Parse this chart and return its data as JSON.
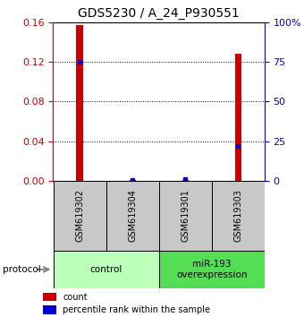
{
  "title": "GDS5230 / A_24_P930551",
  "categories": [
    "GSM619302",
    "GSM619304",
    "GSM619301",
    "GSM619303"
  ],
  "red_bars": [
    0.157,
    0.0005,
    0.0005,
    0.128
  ],
  "blue_dots_pct": [
    75.0,
    0.3,
    1.0,
    22.0
  ],
  "left_ylim": [
    0,
    0.16
  ],
  "right_ylim": [
    0,
    100
  ],
  "left_yticks": [
    0,
    0.04,
    0.08,
    0.12,
    0.16
  ],
  "right_yticks": [
    0,
    25,
    50,
    75,
    100
  ],
  "right_yticklabels": [
    "0",
    "25",
    "50",
    "75",
    "100%"
  ],
  "groups": [
    {
      "label": "control",
      "indices": [
        0,
        1
      ],
      "color": "#bbffbb"
    },
    {
      "label": "miR-193\noverexpression",
      "indices": [
        2,
        3
      ],
      "color": "#55dd55"
    }
  ],
  "protocol_label": "protocol",
  "red_color": "#cc0000",
  "blue_color": "#0000cc",
  "bar_bg_color": "#c8c8c8",
  "title_fontsize": 10,
  "tick_fontsize": 8,
  "bar_width": 0.12
}
